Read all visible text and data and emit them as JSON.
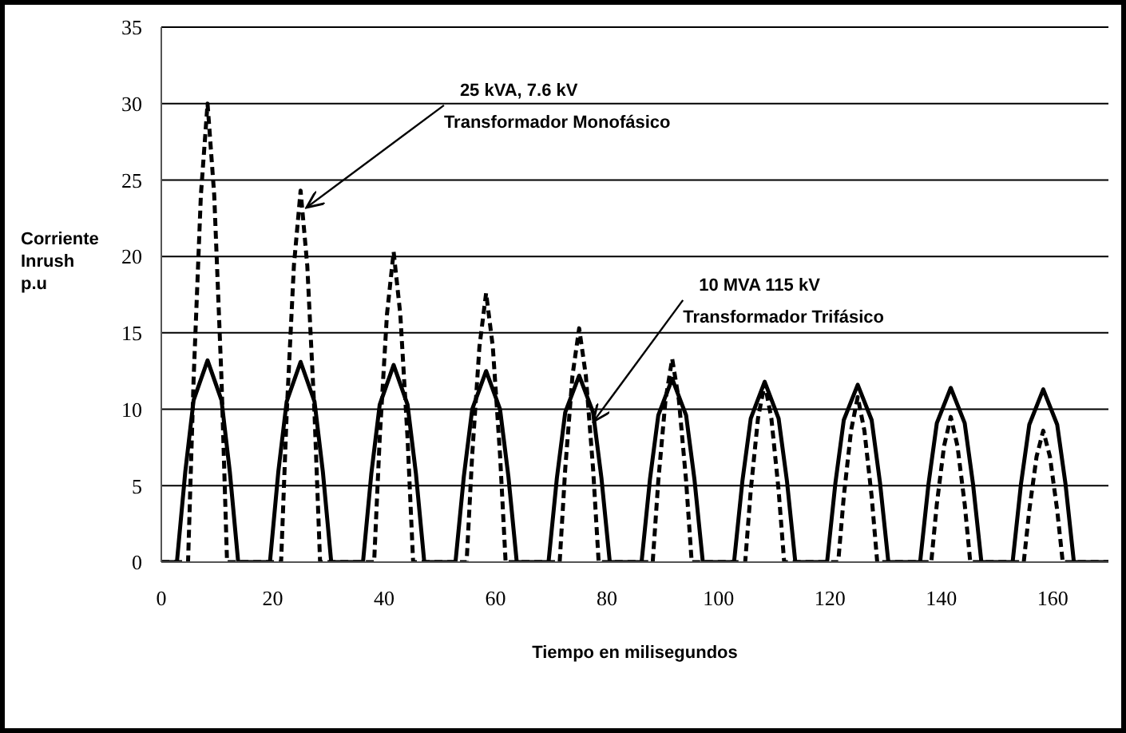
{
  "chart_data": {
    "type": "line",
    "xlabel": "Tiempo en milisegundos",
    "ylabel": "Corriente\nInrush\np.u",
    "xlim": [
      0,
      170
    ],
    "xticks": [
      0,
      20,
      40,
      60,
      80,
      100,
      120,
      140,
      160
    ],
    "ylim": [
      0,
      35
    ],
    "yticks": [
      0,
      5,
      10,
      15,
      20,
      25,
      30,
      35
    ],
    "grid": "y",
    "marker": "none",
    "annotations": [
      {
        "text": "25 kVA, 7.6 kV\nTransformador Monofásico",
        "x": 25.5,
        "y": 23.2
      },
      {
        "text": "10 MVA 115 kV\nTransformador Trifásico",
        "x": 77,
        "y": 9.2
      }
    ],
    "series": [
      {
        "color": "#000000",
        "line_style": "solid",
        "x": [
          0,
          2.8,
          4.3,
          5.8,
          8.3,
          10.8,
          12.3,
          13.8,
          19.5,
          21,
          22.5,
          25,
          27.5,
          29,
          30.5,
          36.2,
          37.7,
          39.2,
          41.7,
          44.2,
          45.7,
          47.2,
          52.8,
          54.3,
          55.8,
          58.3,
          60.8,
          62.3,
          63.8,
          69.5,
          71,
          72.5,
          75,
          77.5,
          79,
          80.5,
          86.2,
          87.7,
          89.2,
          91.7,
          94.2,
          95.7,
          97.2,
          102.8,
          104.3,
          105.8,
          108.3,
          110.8,
          112.3,
          113.8,
          119.5,
          121,
          122.5,
          125,
          127.5,
          129,
          130.5,
          136.2,
          137.7,
          139.2,
          141.7,
          144.2,
          145.7,
          147.2,
          152.8,
          154.3,
          155.8,
          158.3,
          160.8,
          162.3,
          163.8,
          170
        ],
        "values": [
          0,
          0,
          5.9,
          10.6,
          13.2,
          10.6,
          5.9,
          0,
          0,
          5.9,
          10.5,
          13.1,
          10.5,
          5.9,
          0,
          0,
          5.8,
          10.3,
          12.9,
          10.3,
          5.8,
          0,
          0,
          5.6,
          10,
          12.5,
          10,
          5.6,
          0,
          0,
          5.5,
          9.8,
          12.2,
          9.8,
          5.5,
          0,
          0,
          5.4,
          9.6,
          12,
          9.6,
          5.4,
          0,
          0,
          5.3,
          9.4,
          11.8,
          9.4,
          5.3,
          0,
          0,
          5.2,
          9.3,
          11.6,
          9.3,
          5.2,
          0,
          0,
          5.1,
          9.1,
          11.4,
          9.1,
          5.1,
          0,
          0,
          5.1,
          9,
          11.3,
          9,
          5.1,
          0,
          0
        ]
      },
      {
        "color": "#000000",
        "line_style": "dashed",
        "x": [
          0,
          4.8,
          5.8,
          7.1,
          8.3,
          9.5,
          10.8,
          11.8,
          21.5,
          22.5,
          23.8,
          25,
          26.2,
          27.5,
          28.5,
          38.2,
          39.2,
          40.5,
          41.7,
          42.9,
          44.2,
          45.2,
          54.8,
          55.8,
          57.1,
          58.3,
          59.5,
          60.8,
          61.8,
          71.5,
          72.5,
          73.8,
          75,
          76.2,
          77.5,
          78.5,
          88.2,
          89.2,
          90.5,
          91.7,
          92.9,
          94.2,
          95.2,
          104.8,
          105.8,
          107.1,
          108.3,
          109.5,
          110.8,
          111.8,
          121.5,
          122.5,
          123.8,
          125,
          126.2,
          127.5,
          128.5,
          138.2,
          139.2,
          140.5,
          141.7,
          142.9,
          144.2,
          145.2,
          154.8,
          155.8,
          157.1,
          158.3,
          159.5,
          160.8,
          161.8,
          170
        ],
        "values": [
          0,
          0,
          12,
          24,
          30,
          24,
          12,
          0,
          0,
          9.7,
          19.4,
          24.3,
          19.4,
          9.7,
          0,
          0,
          8.1,
          16.2,
          20.3,
          16.2,
          8.1,
          0,
          0,
          7,
          14.1,
          17.6,
          14.1,
          7,
          0,
          0,
          6.1,
          12.2,
          15.3,
          12.2,
          6.1,
          0,
          0,
          5.3,
          10.6,
          13.3,
          10.6,
          5.3,
          0,
          0,
          4.7,
          9.4,
          11.7,
          9.4,
          4.7,
          0,
          0,
          4.3,
          8.6,
          10.8,
          8.6,
          4.3,
          0,
          0,
          3.8,
          7.6,
          9.5,
          7.6,
          3.8,
          0,
          0,
          3.4,
          6.9,
          8.6,
          6.9,
          3.4,
          0,
          0
        ]
      }
    ]
  }
}
